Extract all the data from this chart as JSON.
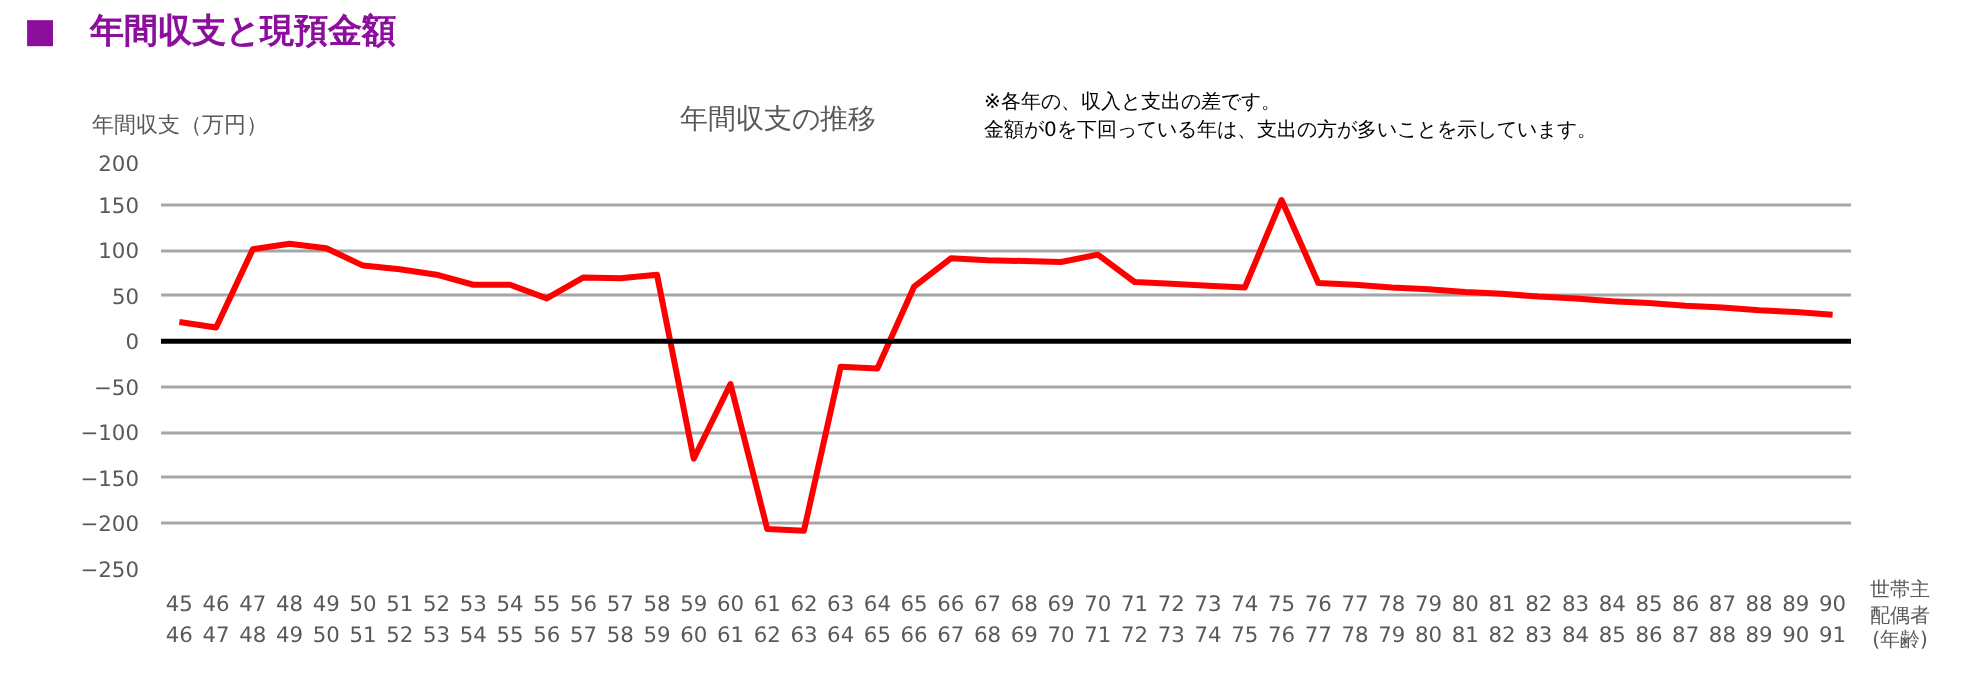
{
  "chart_data": {
    "type": "line",
    "title": "■　年間収支と現預金額",
    "subtitle": "年間収支の推移",
    "ylabel": "年間収支（万円）",
    "xlabel": "世帯主配偶者(年齢)",
    "annotations": [
      "※各年の、収入と支出の差です。",
      "金額が0を下回っている年は、支出の方が多いことを示しています。"
    ],
    "categories": [
      "45\n46",
      "46\n47",
      "47\n48",
      "48\n49",
      "49\n50",
      "50\n51",
      "51\n52",
      "52\n53",
      "53\n54",
      "54\n55",
      "55\n56",
      "56\n57",
      "57\n58",
      "58\n59",
      "59\n60",
      "60\n61",
      "61\n62",
      "62\n63",
      "63\n64",
      "64\n65",
      "65\n66",
      "66\n67",
      "67\n68",
      "68\n69",
      "69\n70",
      "70\n71",
      "71\n72",
      "72\n73",
      "73\n74",
      "74\n75",
      "75\n76",
      "76\n77",
      "77\n78",
      "78\n79",
      "79\n80",
      "80\n81",
      "81\n82",
      "82\n83",
      "83\n84",
      "84\n85",
      "85\n86",
      "86\n87",
      "87\n88",
      "88\n89",
      "89\n90",
      "90\n91"
    ],
    "series": [
      {
        "color": "#ff0000",
        "values": [
          21,
          15,
          101,
          107,
          102,
          83,
          79,
          73,
          62,
          62,
          47,
          70,
          69,
          73,
          -129,
          -47,
          -206,
          -208,
          -28,
          -30,
          60,
          91,
          89,
          88,
          87,
          95,
          65,
          63,
          61,
          59,
          155,
          64,
          62,
          59,
          57,
          54,
          52,
          49,
          47,
          44,
          42,
          39,
          37,
          34,
          32,
          29
        ]
      }
    ],
    "ylim": [
      -250,
      200
    ],
    "yticks": [
      -250,
      -200,
      -150,
      -100,
      -50,
      0,
      50,
      100,
      150,
      200
    ],
    "grid": "y",
    "ref_lines": [
      {
        "axis": "y",
        "value": 0,
        "color": "#000000"
      }
    ],
    "line_style": "solid",
    "marker": "none"
  }
}
